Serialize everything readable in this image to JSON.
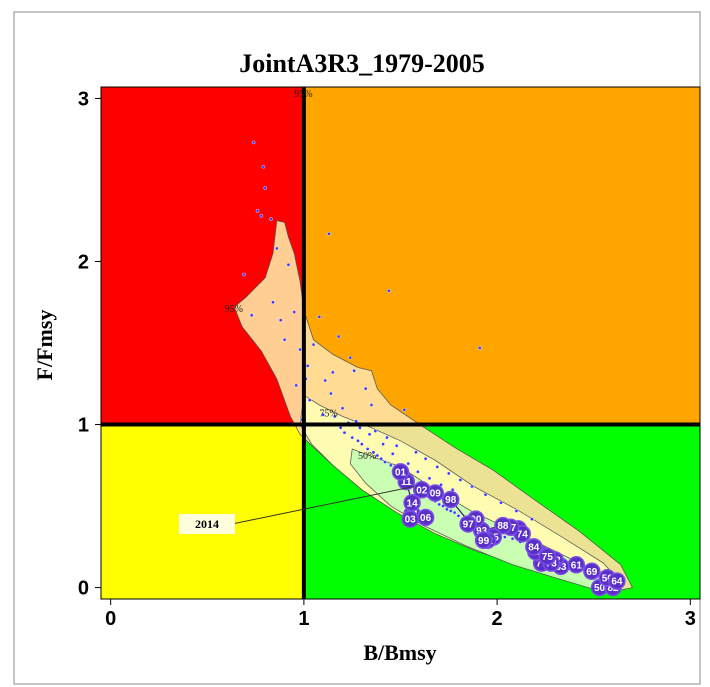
{
  "chart_data": {
    "type": "scatter",
    "title": "JointA3R3_1979-2005",
    "xlabel": "B/Bmsy",
    "ylabel": "F/Fmsy",
    "xlim": [
      -0.05,
      3.05
    ],
    "ylim": [
      -0.07,
      3.07
    ],
    "xticks": [
      "0",
      "1",
      "2",
      "3"
    ],
    "yticks": [
      "0",
      "1",
      "2",
      "3"
    ],
    "reference_lines": {
      "x": 1,
      "y": 1
    },
    "quadrants": [
      {
        "name": "overfished-overfishing",
        "color": "#ff0000"
      },
      {
        "name": "healthy-overfishing",
        "color": "#ffa500"
      },
      {
        "name": "overfished-no-overfishing",
        "color": "#ffff00"
      },
      {
        "name": "healthy",
        "color": "#00ff00"
      }
    ],
    "contour_labels": [
      "95%",
      "75%",
      "50%"
    ],
    "contour_colors": {
      "95": "#ffe0a0",
      "75": "#ffffb4",
      "50": "#c8ffb4"
    },
    "annotation": {
      "text": "2014",
      "x": 1.57,
      "y": 0.62
    },
    "trajectory": {
      "years": [
        "50",
        "82",
        "56",
        "64",
        "69",
        "61",
        "63",
        "62",
        "77",
        "73",
        "57",
        "83",
        "75",
        "84",
        "86",
        "74",
        "87",
        "88",
        "93",
        "95",
        "90",
        "92",
        "97",
        "99",
        "98",
        "09",
        "02",
        "04",
        "06",
        "03",
        "14",
        "11",
        "01"
      ],
      "x": [
        2.53,
        2.6,
        2.57,
        2.62,
        2.49,
        2.41,
        2.33,
        2.3,
        2.23,
        2.28,
        2.22,
        2.2,
        2.26,
        2.19,
        2.11,
        2.13,
        2.07,
        2.03,
        1.92,
        1.98,
        1.89,
        1.95,
        1.85,
        1.93,
        1.76,
        1.68,
        1.61,
        1.56,
        1.63,
        1.55,
        1.56,
        1.53,
        1.5
      ],
      "y": [
        0.0,
        0.0,
        0.06,
        0.04,
        0.1,
        0.14,
        0.13,
        0.17,
        0.15,
        0.15,
        0.21,
        0.22,
        0.19,
        0.25,
        0.36,
        0.33,
        0.37,
        0.38,
        0.35,
        0.31,
        0.42,
        0.29,
        0.39,
        0.29,
        0.54,
        0.58,
        0.6,
        0.45,
        0.43,
        0.42,
        0.52,
        0.65,
        0.71
      ]
    },
    "bootstrap_points": {
      "x": [
        0.74,
        0.79,
        0.8,
        0.78,
        0.76,
        0.83,
        0.86,
        0.92,
        0.69,
        0.73,
        0.84,
        0.88,
        0.95,
        0.9,
        0.98,
        1.02,
        1.13,
        1.05,
        1.08,
        1.18,
        1.24,
        1.11,
        1.15,
        1.32,
        1.44,
        1.91,
        1.26,
        1.35,
        1.52,
        1.14,
        1.19,
        1.21,
        1.25,
        1.28,
        1.3,
        1.33,
        1.36,
        1.38,
        1.4,
        1.42,
        1.45,
        1.47,
        1.49,
        1.51,
        1.53,
        1.55,
        1.57,
        1.6,
        1.62,
        1.64,
        1.66,
        1.68,
        1.7,
        1.72,
        1.74,
        1.76,
        1.78,
        1.8,
        1.82,
        1.85,
        1.88,
        1.9,
        1.93,
        1.96,
        2.0,
        2.04,
        2.08,
        2.12,
        1.1,
        1.03,
        0.99,
        0.96,
        1.01,
        1.07,
        1.16,
        1.23,
        1.29,
        1.37,
        1.43,
        1.48,
        1.58,
        1.63,
        1.69,
        1.75,
        1.81,
        1.87,
        1.94,
        2.02,
        2.1,
        2.18,
        1.2,
        1.27,
        1.34,
        1.41,
        1.46,
        1.54,
        1.59,
        1.65,
        1.71,
        1.77
      ],
      "y": [
        2.73,
        2.58,
        2.45,
        2.28,
        2.31,
        2.26,
        2.08,
        1.98,
        1.92,
        1.67,
        1.75,
        1.64,
        1.69,
        1.52,
        1.46,
        1.36,
        2.17,
        1.49,
        1.66,
        1.54,
        1.41,
        1.27,
        1.32,
        1.22,
        1.82,
        1.47,
        1.33,
        1.12,
        1.09,
        1.19,
        0.98,
        0.95,
        0.92,
        0.9,
        0.88,
        0.85,
        0.83,
        0.81,
        0.79,
        0.77,
        0.75,
        0.72,
        0.7,
        0.68,
        0.66,
        0.64,
        0.62,
        0.6,
        0.58,
        0.56,
        0.55,
        0.53,
        0.51,
        0.5,
        0.48,
        0.47,
        0.46,
        0.44,
        0.42,
        0.41,
        0.39,
        0.38,
        0.36,
        0.35,
        0.33,
        0.31,
        0.3,
        0.28,
        1.06,
        1.15,
        1.03,
        1.24,
        1.28,
        1.0,
        1.05,
        1.01,
        0.98,
        0.96,
        0.92,
        0.87,
        0.83,
        0.79,
        0.74,
        0.7,
        0.66,
        0.62,
        0.57,
        0.52,
        0.47,
        0.42,
        1.1,
        1.02,
        0.94,
        0.88,
        0.82,
        0.76,
        0.71,
        0.67,
        0.63,
        0.6
      ]
    }
  }
}
